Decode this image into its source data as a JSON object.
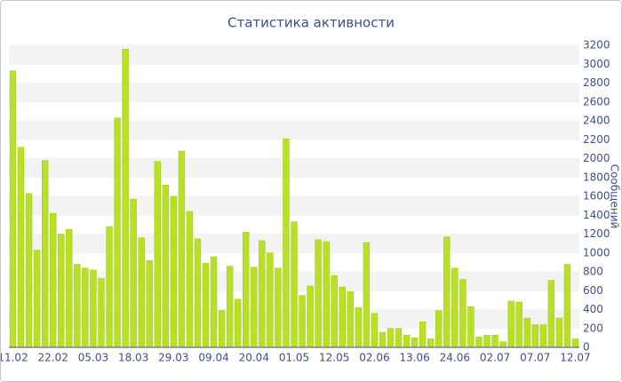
{
  "chart_data": {
    "type": "bar",
    "title": "Статистика активности",
    "y_label": "Сообщений",
    "categories": [
      "11.02",
      null,
      null,
      null,
      null,
      "22.02",
      null,
      null,
      null,
      null,
      "05.03",
      null,
      null,
      null,
      null,
      "18.03",
      null,
      null,
      null,
      null,
      "29.03",
      null,
      null,
      null,
      null,
      "09.04",
      null,
      null,
      null,
      null,
      "20.04",
      null,
      null,
      null,
      null,
      "01.05",
      null,
      null,
      null,
      null,
      "12.05",
      null,
      null,
      null,
      null,
      "02.06",
      null,
      null,
      null,
      null,
      "13.06",
      null,
      null,
      null,
      null,
      "24.06",
      null,
      null,
      null,
      null,
      "02.07",
      null,
      null,
      null,
      null,
      "07.07",
      null,
      null,
      null,
      null,
      "12.07"
    ],
    "values": [
      2930,
      2120,
      1630,
      1030,
      1980,
      1420,
      1200,
      1250,
      880,
      840,
      820,
      730,
      1280,
      2430,
      3160,
      1570,
      1160,
      920,
      1970,
      1720,
      1600,
      2080,
      1440,
      1150,
      890,
      960,
      390,
      860,
      510,
      1220,
      850,
      1130,
      1000,
      840,
      2210,
      1330,
      550,
      650,
      1140,
      1120,
      760,
      640,
      590,
      420,
      1110,
      360,
      160,
      200,
      200,
      130,
      100,
      270,
      90,
      390,
      1170,
      840,
      720,
      430,
      110,
      130,
      130,
      60,
      490,
      480,
      310,
      240,
      240,
      710,
      310,
      880,
      90
    ],
    "color": "#b8e024",
    "ylim": [
      0,
      3200
    ],
    "yticks": [
      0,
      200,
      400,
      600,
      800,
      1000,
      1200,
      1400,
      1600,
      1800,
      2000,
      2200,
      2400,
      2600,
      2800,
      3000,
      3200
    ],
    "grid": true
  }
}
